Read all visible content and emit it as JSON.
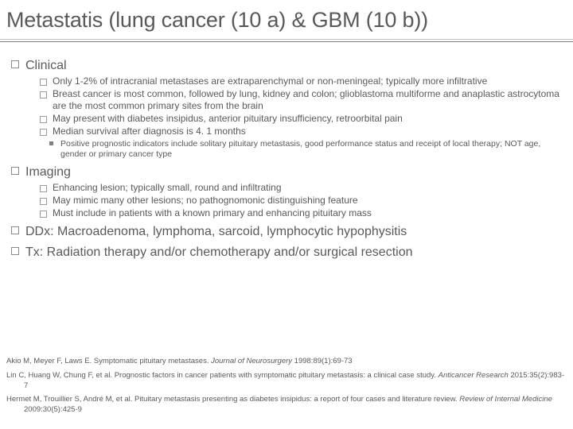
{
  "title": "Metastatis (lung cancer (10 a) & GBM (10 b))",
  "colors": {
    "text": "#595959",
    "bullet_border": "#8a8a8a",
    "subbullet_fill": "#808080",
    "divider_light": "#bfbfbf",
    "divider_dark": "#7f7f7f",
    "background": "#ffffff"
  },
  "typography": {
    "title_fontsize": 27,
    "heading_fontsize": 16,
    "body_fontsize": 12,
    "sub_fontsize": 10.5,
    "refs_fontsize": 9.5,
    "font_family": "Segoe UI"
  },
  "sections": [
    {
      "heading": "Clinical",
      "items": [
        "Only 1-2% of intracranial metastases are extraparenchymal or non-meningeal; typically more infiltrative",
        "Breast cancer is most common, followed by lung, kidney and colon; glioblastoma multiforme and anaplastic astrocytoma are the most common primary sites from the brain",
        "May present with diabetes insipidus, anterior pituitary insufficiency, retroorbital pain",
        "Median survival after diagnosis is 4. 1 months"
      ],
      "subitems": [
        "Positive prognostic indicators include solitary pituitary metastasis, good performance status and receipt of local therapy; NOT age, gender or primary cancer type"
      ]
    },
    {
      "heading": "Imaging",
      "items": [
        "Enhancing lesion; typically small, round and infiltrating",
        "May mimic many other lesions; no pathognomonic distinguishing feature",
        "Must include in patients with a known primary and enhancing pituitary mass"
      ]
    },
    {
      "heading": "DDx: Macroadenoma, lymphoma, sarcoid, lymphocytic hypophysitis"
    },
    {
      "heading": "Tx: Radiation therapy and/or chemotherapy and/or surgical resection"
    }
  ],
  "references": [
    {
      "pre": "Akio M, Meyer F, Laws E. Symptomatic pituitary metastases. ",
      "journal": "Journal of Neurosurgery ",
      "post": "1998:89(1):69-73"
    },
    {
      "pre": "Lin C, Huang W, Chung F, et al. Prognostic factors in cancer patients with symptomatic pituitary metastasis: a clinical case study. ",
      "journal": "Anticancer Research ",
      "post": "2015:35(2):983-7"
    },
    {
      "pre": "Hermet M, Trouillier S, André M, et al. Pituitary metastasis presenting as diabetes insipidus: a report of four cases and literature review. ",
      "journal": "Review of Internal Medicine ",
      "post": "2009:30(5):425-9"
    }
  ]
}
